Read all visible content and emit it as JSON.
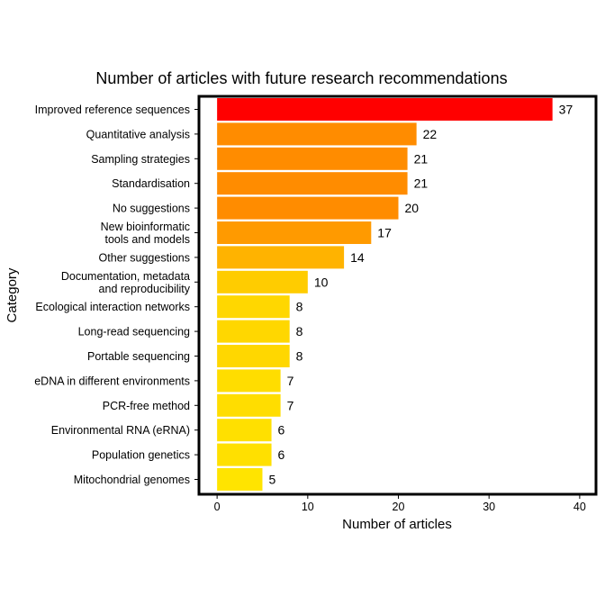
{
  "chart_data": {
    "type": "bar",
    "orientation": "horizontal",
    "title": "Number of articles with future research recommendations",
    "xlabel": "Number of articles",
    "ylabel": "Category",
    "xlim": [
      -2,
      41.8
    ],
    "xticks": [
      0,
      10,
      20,
      30,
      40
    ],
    "grid": false,
    "legend": "none",
    "categories": [
      "Improved reference sequences",
      "Quantitative analysis",
      "Sampling strategies",
      "Standardisation",
      "No suggestions",
      "New bioinformatic\ntools and models",
      "Other suggestions",
      "Documentation, metadata\nand reproducibility",
      "Ecological interaction networks",
      "Long-read sequencing",
      "Portable sequencing",
      "eDNA in different environments",
      "PCR-free method",
      "Environmental RNA (eRNA)",
      "Population genetics",
      "Mitochondrial genomes"
    ],
    "values": [
      37,
      22,
      21,
      21,
      20,
      17,
      14,
      10,
      8,
      8,
      8,
      7,
      7,
      6,
      6,
      5
    ],
    "colors": [
      "#FF0000",
      "#FF8C00",
      "#FF8C00",
      "#FF8C00",
      "#FF8C00",
      "#FF9A00",
      "#FFB300",
      "#FFCC00",
      "#FFD700",
      "#FFD700",
      "#FFD700",
      "#FFDD00",
      "#FFDD00",
      "#FFE000",
      "#FFE000",
      "#FFE400"
    ]
  }
}
